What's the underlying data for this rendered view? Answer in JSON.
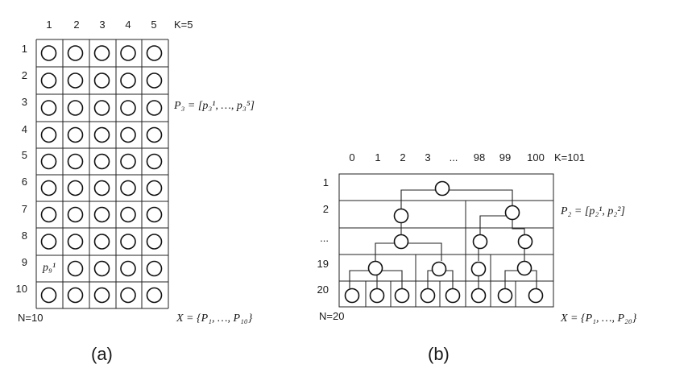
{
  "panel_a": {
    "columns": [
      "1",
      "2",
      "3",
      "4",
      "5"
    ],
    "k_label": "K=5",
    "rows": [
      "1",
      "2",
      "3",
      "4",
      "5",
      "6",
      "7",
      "8",
      "9",
      "10"
    ],
    "n_label": "N=10",
    "p3_formula": "P₃ = [p₃¹, …, p₃⁵]",
    "cell_label": "p₉¹",
    "x_formula": "X = {P₁, …, P₁₀}",
    "caption": "(a)"
  },
  "panel_b": {
    "columns": [
      "0",
      "1",
      "2",
      "3",
      "...",
      "98",
      "99",
      "100"
    ],
    "k_label": "K=101",
    "rows": [
      "1",
      "2",
      "...",
      "19",
      "20"
    ],
    "n_label": "N=20",
    "p2_formula": "P₂ = [p₂¹, p₂²]",
    "x_formula": "X = {P₁, …, P₂₀}",
    "caption": "(b)"
  }
}
